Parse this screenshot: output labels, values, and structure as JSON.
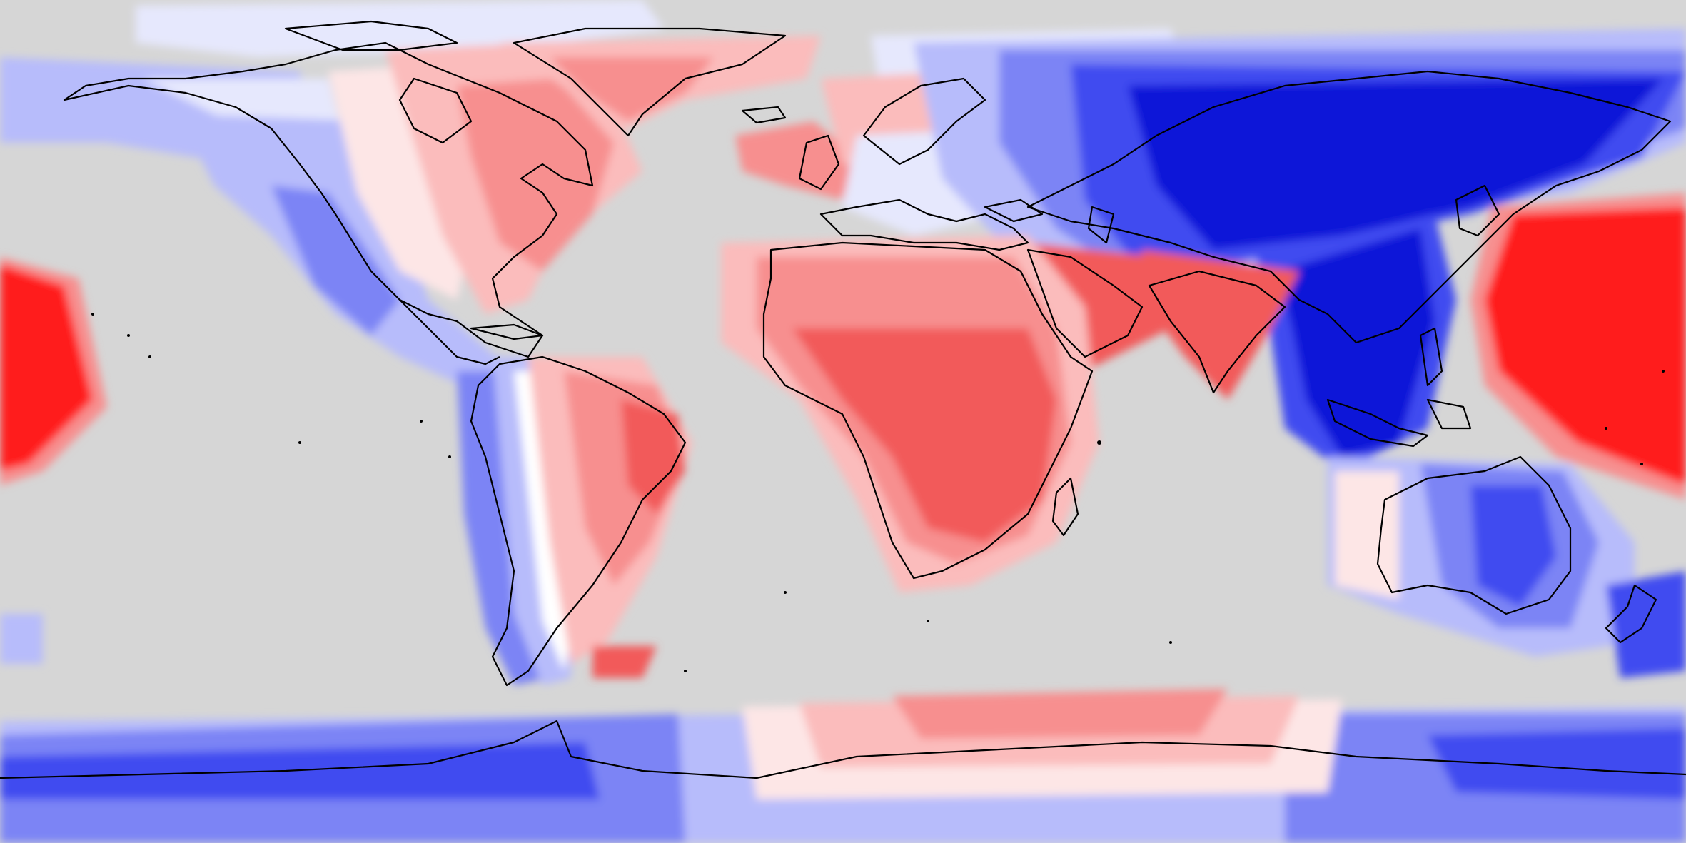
{
  "map": {
    "projection": "equirectangular",
    "colors": {
      "background": "#d6d6d6",
      "coastline": "#000000",
      "scale_strong_negative": "#0a14d8",
      "scale_negative": "#3f4cf0",
      "scale_mid_negative": "#7c84f5",
      "scale_light_negative": "#b7bcfb",
      "scale_faint_negative": "#e6e8fd",
      "scale_neutral": "#ffffff",
      "scale_faint_positive": "#fde6e6",
      "scale_light_positive": "#fbbcbc",
      "scale_mid_positive": "#f78f8f",
      "scale_positive": "#f25a5a",
      "scale_strong_positive": "#ff1a1a"
    },
    "regions": [
      {
        "name": "north-america-west",
        "tone": "negative"
      },
      {
        "name": "north-america-east",
        "tone": "positive"
      },
      {
        "name": "greenland",
        "tone": "positive"
      },
      {
        "name": "south-america-west",
        "tone": "negative"
      },
      {
        "name": "south-america-east",
        "tone": "positive"
      },
      {
        "name": "africa",
        "tone": "positive"
      },
      {
        "name": "arabia",
        "tone": "positive"
      },
      {
        "name": "india",
        "tone": "positive"
      },
      {
        "name": "europe-west",
        "tone": "positive"
      },
      {
        "name": "eurasia-north",
        "tone": "strong-negative"
      },
      {
        "name": "southeast-asia",
        "tone": "strong-negative"
      },
      {
        "name": "australia",
        "tone": "negative"
      },
      {
        "name": "western-pacific",
        "tone": "strong-positive"
      },
      {
        "name": "central-pacific-west",
        "tone": "strong-positive"
      },
      {
        "name": "antarctica-east-west",
        "tone": "negative"
      },
      {
        "name": "antarctica-central",
        "tone": "positive"
      }
    ]
  }
}
